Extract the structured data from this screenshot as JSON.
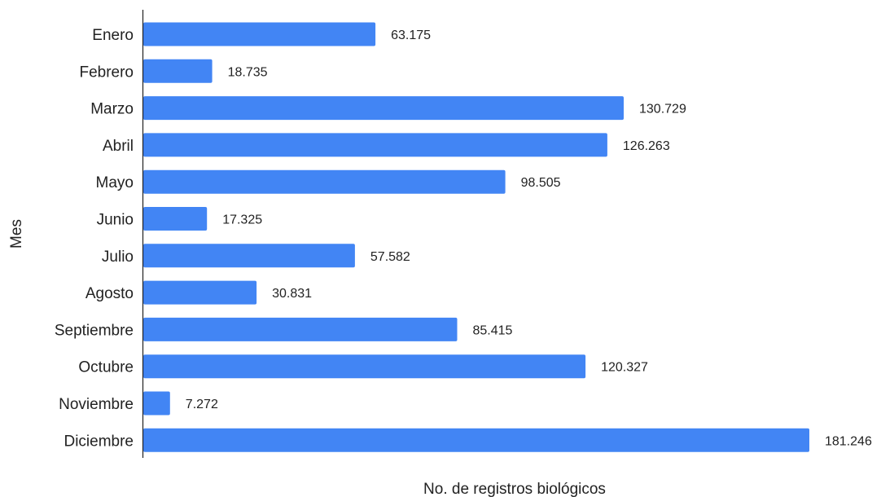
{
  "chart_data": {
    "type": "bar",
    "orientation": "horizontal",
    "title": "",
    "xlabel": "No. de registros biológicos",
    "ylabel": "Mes",
    "categories": [
      "Enero",
      "Febrero",
      "Marzo",
      "Abril",
      "Mayo",
      "Junio",
      "Julio",
      "Agosto",
      "Septiembre",
      "Octubre",
      "Noviembre",
      "Diciembre"
    ],
    "values": [
      63175,
      18735,
      130729,
      126263,
      98505,
      17325,
      57582,
      30831,
      85415,
      120327,
      7272,
      181246
    ],
    "value_labels": [
      "63.175",
      "18.735",
      "130.729",
      "126.263",
      "98.505",
      "17.325",
      "57.582",
      "30.831",
      "85.415",
      "120.327",
      "7.272",
      "181.246"
    ],
    "xlim": [
      0,
      181246
    ],
    "grid": false,
    "legend": "none",
    "bar_color": "#4285f4",
    "axis_color": "#222222"
  }
}
